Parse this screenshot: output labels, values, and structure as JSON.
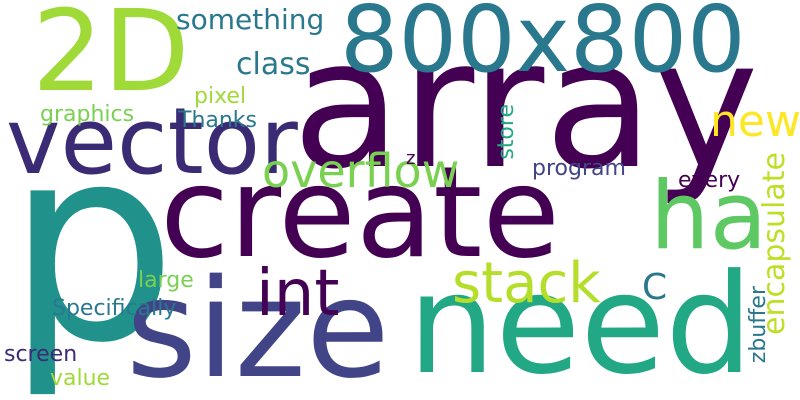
{
  "words": [
    {
      "text": "p",
      "color": "#21918c"
    },
    {
      "text": "array",
      "color": "#440154"
    },
    {
      "text": "800x800",
      "color": "#2a788e"
    },
    {
      "text": "2D",
      "color": "#a0da39"
    },
    {
      "text": "create",
      "color": "#440154"
    },
    {
      "text": "size",
      "color": "#414487"
    },
    {
      "text": "need",
      "color": "#22a884"
    },
    {
      "text": "vector",
      "color": "#3b2a74"
    },
    {
      "text": "ha",
      "color": "#5ec962"
    },
    {
      "text": "stack",
      "color": "#b5de2b"
    },
    {
      "text": "int",
      "color": "#440154"
    },
    {
      "text": "overflow",
      "color": "#7ad151"
    },
    {
      "text": "something",
      "color": "#2a788e"
    },
    {
      "text": "class",
      "color": "#2a788e"
    },
    {
      "text": "new",
      "color": "#fde725"
    },
    {
      "text": "encapsulate",
      "color": "#bddf26"
    },
    {
      "text": "graphics",
      "color": "#7ad151"
    },
    {
      "text": "pixel",
      "color": "#a0da39"
    },
    {
      "text": "Thanks",
      "color": "#2a788e"
    },
    {
      "text": "store",
      "color": "#22a884"
    },
    {
      "text": "z",
      "color": "#440154"
    },
    {
      "text": "program",
      "color": "#414487"
    },
    {
      "text": "every",
      "color": "#440154"
    },
    {
      "text": "C",
      "color": "#2a788e"
    },
    {
      "text": "large",
      "color": "#7ad151"
    },
    {
      "text": "Specifically",
      "color": "#2a788e"
    },
    {
      "text": "zbuffer",
      "color": "#2a788e"
    },
    {
      "text": "screen",
      "color": "#3b2a74"
    },
    {
      "text": "value",
      "color": "#a0da39"
    }
  ]
}
